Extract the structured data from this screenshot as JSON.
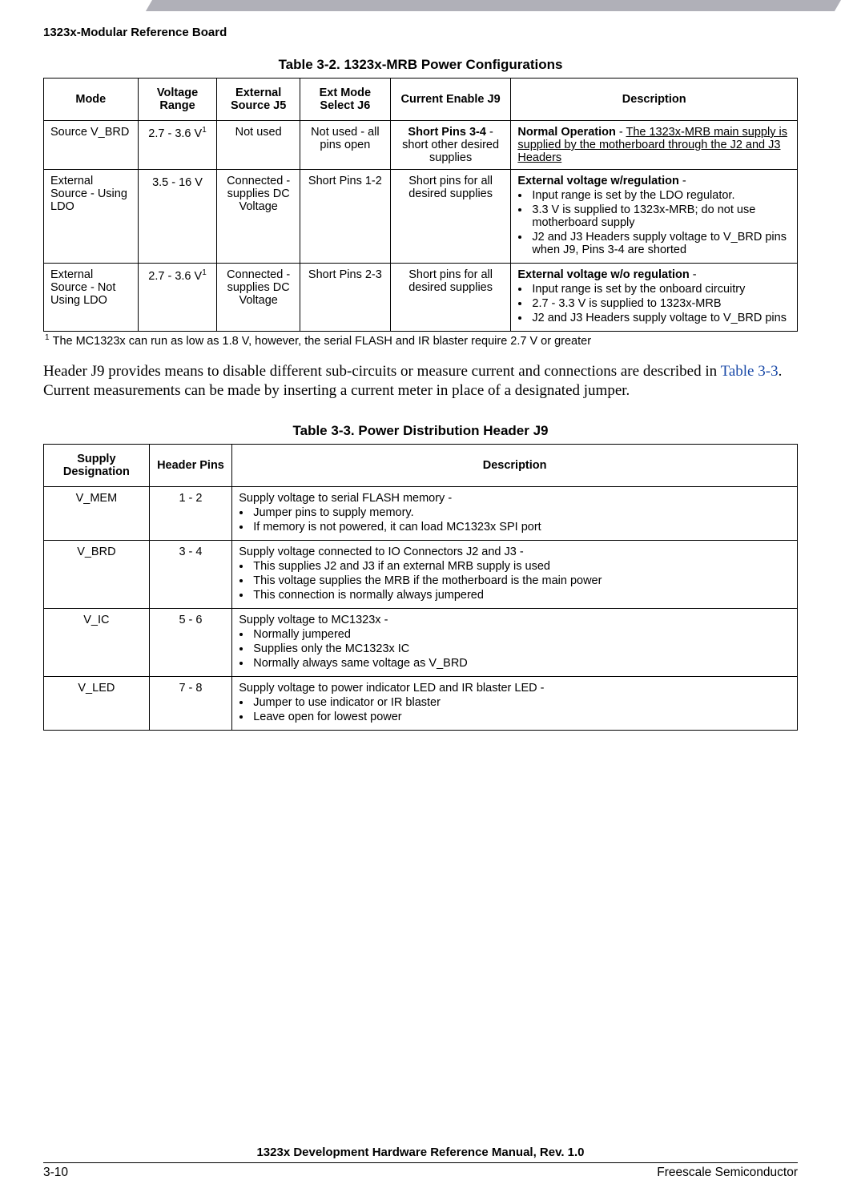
{
  "running_header": "1323x-Modular Reference Board",
  "table1": {
    "title": "Table 3-2. 1323x-MRB Power Configurations",
    "headers": {
      "mode": "Mode",
      "voltage_range": "Voltage Range",
      "external_source": "External Source J5",
      "ext_mode_select": "Ext Mode Select J6",
      "current_enable": "Current Enable J9",
      "description": "Description"
    },
    "rows": [
      {
        "mode": "Source V_BRD",
        "voltage": "2.7 - 3.6 V",
        "voltage_sup": "1",
        "ext_source": "Not used",
        "ext_mode": "Not used - all pins open",
        "current_bold": "Short Pins 3-4",
        "current_rest": " - short other desired supplies",
        "desc_bold": "Normal Operation",
        "desc_rest": " - ",
        "desc_u": "The 1323x-MRB main supply is supplied by the motherboard through the J2 and J3 Headers",
        "bullets": []
      },
      {
        "mode": "External Source - Using LDO",
        "voltage": "3.5 - 16 V",
        "voltage_sup": "",
        "ext_source": "Connected - supplies DC Voltage",
        "ext_mode": "Short Pins 1-2",
        "current_bold": "",
        "current_rest": "Short pins for all desired supplies",
        "desc_bold": "External voltage w/regulation",
        "desc_rest": " -",
        "desc_u": "",
        "bullets": [
          "Input range is set by the LDO regulator.",
          "3.3 V is supplied to 1323x-MRB; do not use motherboard supply",
          "J2 and J3 Headers supply voltage to V_BRD pins when J9, Pins 3-4 are shorted"
        ]
      },
      {
        "mode": "External Source - Not Using LDO",
        "voltage": "2.7 - 3.6 V",
        "voltage_sup": "1",
        "ext_source": "Connected - supplies DC Voltage",
        "ext_mode": "Short Pins 2-3",
        "current_bold": "",
        "current_rest": "Short pins for all desired supplies",
        "desc_bold": "External voltage w/o regulation",
        "desc_rest": " -",
        "desc_u": "",
        "bullets": [
          "Input range is set by the onboard circuitry",
          "2.7 - 3.3 V is supplied to 1323x-MRB",
          "J2 and J3 Headers supply voltage to V_BRD pins"
        ]
      }
    ],
    "footnote_sup": "1",
    "footnote": "The MC1323x can run as low as 1.8 V, however, the serial FLASH and IR blaster require 2.7 V or greater"
  },
  "body_paragraph_pre": "Header J9 provides means to disable different sub-circuits or measure current and connections are described in ",
  "body_paragraph_link": "Table 3-3",
  "body_paragraph_post": ". Current measurements can be made by inserting a current meter in place of a designated jumper.",
  "table2": {
    "title": "Table 3-3. Power Distribution Header J9",
    "headers": {
      "supply": "Supply Designation",
      "pins": "Header Pins",
      "description": "Description"
    },
    "rows": [
      {
        "supply": "V_MEM",
        "pins": "1 - 2",
        "intro": "Supply voltage to serial FLASH memory -",
        "bullets": [
          "Jumper pins to supply memory.",
          "If memory is not powered, it can load MC1323x SPI port"
        ]
      },
      {
        "supply": "V_BRD",
        "pins": "3 - 4",
        "intro": "Supply voltage connected to IO Connectors J2 and J3 -",
        "bullets": [
          "This supplies J2 and J3 if an external MRB supply is used",
          "This voltage supplies the MRB if the motherboard is the main power",
          "This connection is normally always jumpered"
        ]
      },
      {
        "supply": "V_IC",
        "pins": "5 - 6",
        "intro": "Supply voltage to MC1323x -",
        "bullets": [
          "Normally jumpered",
          "Supplies only the MC1323x IC",
          "Normally always same voltage as V_BRD"
        ]
      },
      {
        "supply": "V_LED",
        "pins": "7 - 8",
        "intro": "Supply voltage to power indicator LED and IR blaster LED -",
        "bullets": [
          "Jumper to use indicator or IR blaster",
          "Leave open for lowest power"
        ]
      }
    ]
  },
  "doc_footer": "1323x Development Hardware Reference Manual, Rev. 1.0",
  "page_number": "3-10",
  "company": "Freescale Semiconductor"
}
